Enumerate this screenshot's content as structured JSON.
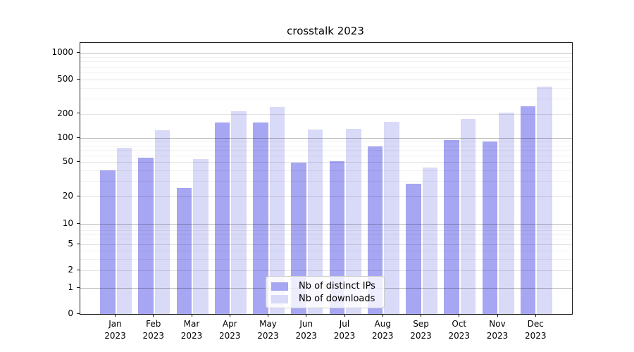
{
  "figure": {
    "title": "crosstalk 2023"
  },
  "legend": {
    "items": [
      {
        "label": "Nb of distinct IPs",
        "color": "#a6a6f2"
      },
      {
        "label": "Nb of downloads",
        "color": "#d9d9f8"
      }
    ]
  },
  "chart_data": {
    "type": "bar",
    "title": "crosstalk 2023",
    "months": [
      "Jan",
      "Feb",
      "Mar",
      "Apr",
      "May",
      "Jun",
      "Jul",
      "Aug",
      "Sep",
      "Oct",
      "Nov",
      "Dec"
    ],
    "year_label": "2023",
    "categories": [
      "Jan 2023",
      "Feb 2023",
      "Mar 2023",
      "Apr 2023",
      "May 2023",
      "Jun 2023",
      "Jul 2023",
      "Aug 2023",
      "Sep 2023",
      "Oct 2023",
      "Nov 2023",
      "Dec 2023"
    ],
    "series": [
      {
        "name": "Nb of distinct IPs",
        "color": "#a6a6f2",
        "values": [
          40,
          56,
          25,
          155,
          157,
          49,
          51,
          78,
          28,
          95,
          90,
          245
        ]
      },
      {
        "name": "Nb of downloads",
        "color": "#d9d9f8",
        "values": [
          75,
          125,
          54,
          215,
          240,
          128,
          130,
          160,
          43,
          172,
          205,
          415
        ]
      }
    ],
    "yscale": "symlog",
    "yticks": [
      0,
      1,
      2,
      5,
      10,
      20,
      50,
      100,
      200,
      500,
      1000
    ],
    "ylim": [
      0,
      1300
    ],
    "xlabel": "",
    "ylabel": "",
    "grid": true,
    "legend_position": "lower center"
  }
}
